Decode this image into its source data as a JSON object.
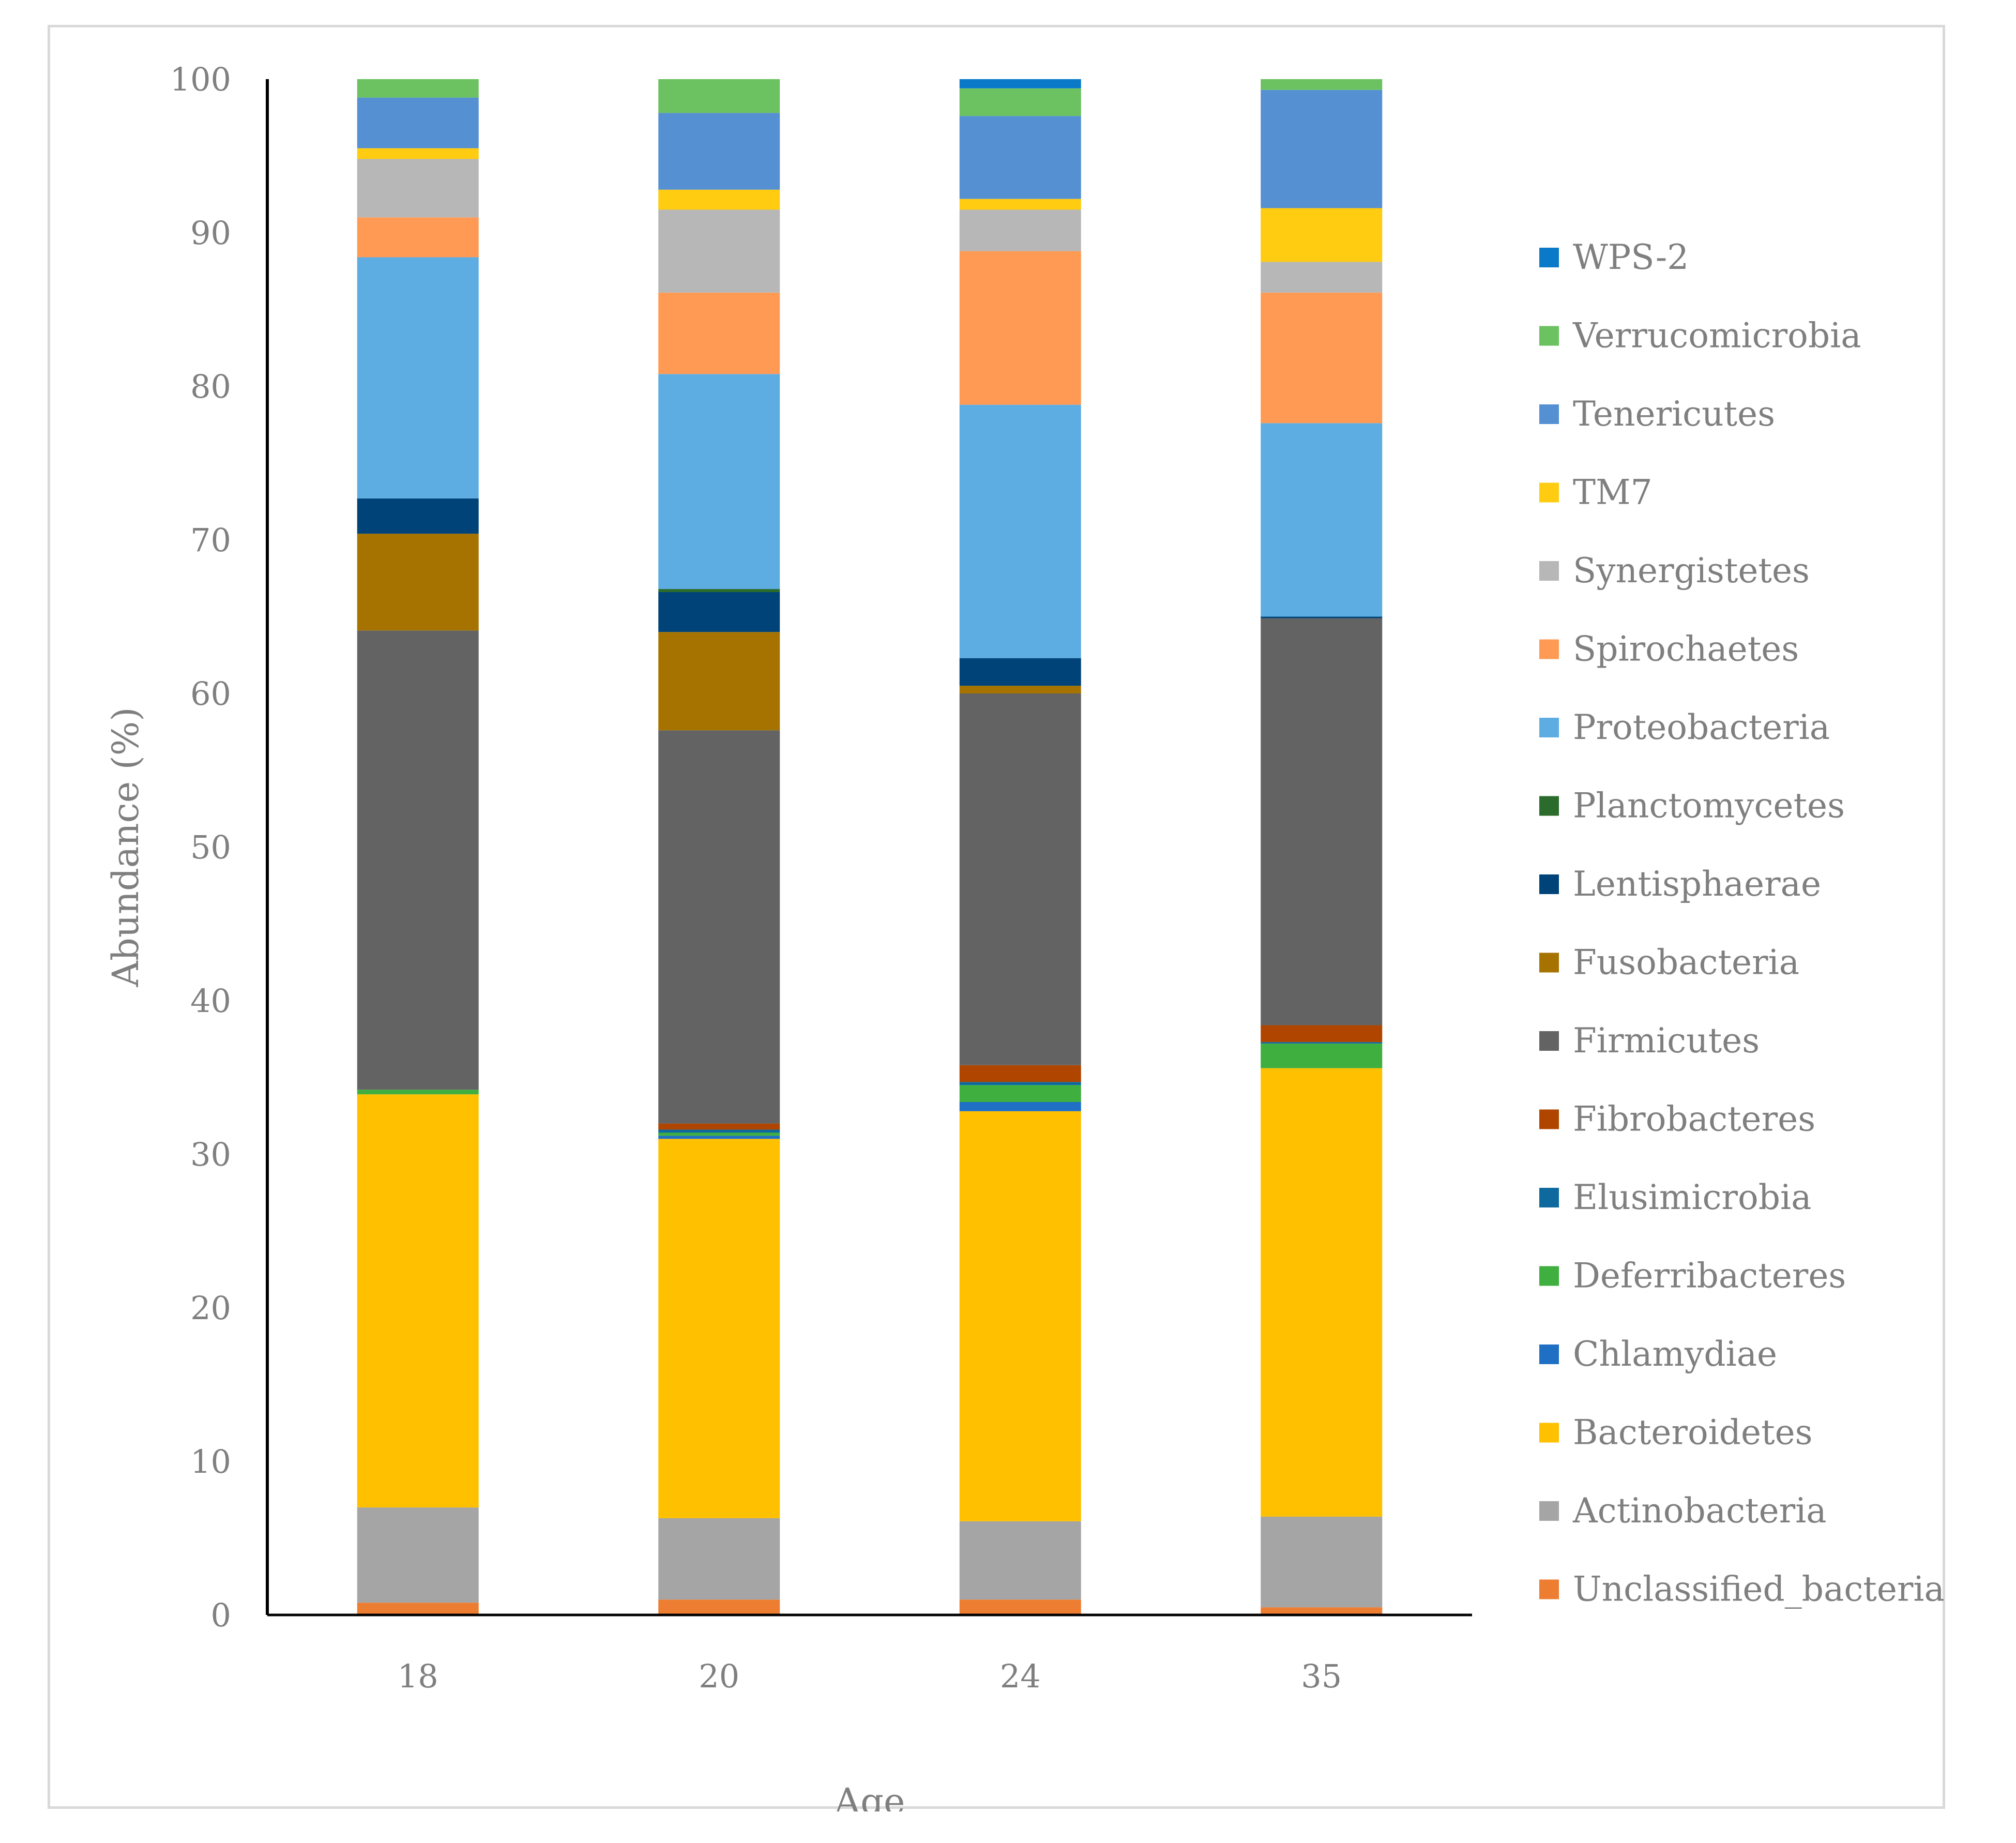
{
  "chart_data": {
    "type": "bar",
    "stacked": true,
    "title": "",
    "xlabel": "Age",
    "ylabel": "Abundance (%)",
    "ylim": [
      0,
      100
    ],
    "yticks": [
      0,
      10,
      20,
      30,
      40,
      50,
      60,
      70,
      80,
      90,
      100
    ],
    "grid": false,
    "legend_position": "right",
    "categories": [
      "18",
      "20",
      "24",
      "35"
    ],
    "series": [
      {
        "name": "Unclassified_bacteria",
        "color": "#ED7D31",
        "values": [
          0.8,
          1.0,
          1.0,
          0.5
        ]
      },
      {
        "name": "Actinobacteria",
        "color": "#A5A5A5",
        "values": [
          6.2,
          5.3,
          5.1,
          5.9
        ]
      },
      {
        "name": "Bacteroidetes",
        "color": "#FFC000",
        "values": [
          26.9,
          24.7,
          26.7,
          29.2
        ]
      },
      {
        "name": "Chlamydiae",
        "color": "#1F6FC5",
        "values": [
          0.0,
          0.2,
          0.6,
          0.0
        ]
      },
      {
        "name": "Deferribacteres",
        "color": "#3FAF3F",
        "values": [
          0.3,
          0.2,
          1.1,
          1.6
        ]
      },
      {
        "name": "Elusimicrobia",
        "color": "#0E6A9E",
        "values": [
          0.0,
          0.2,
          0.2,
          0.1
        ]
      },
      {
        "name": "Fibrobacteres",
        "color": "#B04500",
        "values": [
          0.0,
          0.4,
          1.1,
          1.1
        ]
      },
      {
        "name": "Firmicutes",
        "color": "#636363",
        "values": [
          29.9,
          25.6,
          24.2,
          26.5
        ]
      },
      {
        "name": "Fusobacteria",
        "color": "#A67300",
        "values": [
          6.3,
          6.4,
          0.5,
          0.0
        ]
      },
      {
        "name": "Lentisphaerae",
        "color": "#004378",
        "values": [
          2.3,
          2.6,
          1.8,
          0.1
        ]
      },
      {
        "name": "Planctomycetes",
        "color": "#2B6B2B",
        "values": [
          0.0,
          0.2,
          0.0,
          0.0
        ]
      },
      {
        "name": "Proteobacteria",
        "color": "#5DADE2",
        "values": [
          15.7,
          14.0,
          16.5,
          12.6
        ]
      },
      {
        "name": "Spirochaetes",
        "color": "#FF9A55",
        "values": [
          2.6,
          5.3,
          10.0,
          8.5
        ]
      },
      {
        "name": "Synergistetes",
        "color": "#B7B7B7",
        "values": [
          3.8,
          5.4,
          2.7,
          2.0
        ]
      },
      {
        "name": "TM7",
        "color": "#FFCC11",
        "values": [
          0.7,
          1.3,
          0.7,
          3.5
        ]
      },
      {
        "name": "Tenericutes",
        "color": "#5590D3",
        "values": [
          3.3,
          5.0,
          5.4,
          7.7
        ]
      },
      {
        "name": "Verrucomicrobia",
        "color": "#6CC160",
        "values": [
          1.2,
          2.2,
          1.8,
          1.0
        ]
      },
      {
        "name": "WPS-2",
        "color": "#0A7AC8",
        "values": [
          0.0,
          0.1,
          0.8,
          0.0
        ]
      }
    ]
  }
}
